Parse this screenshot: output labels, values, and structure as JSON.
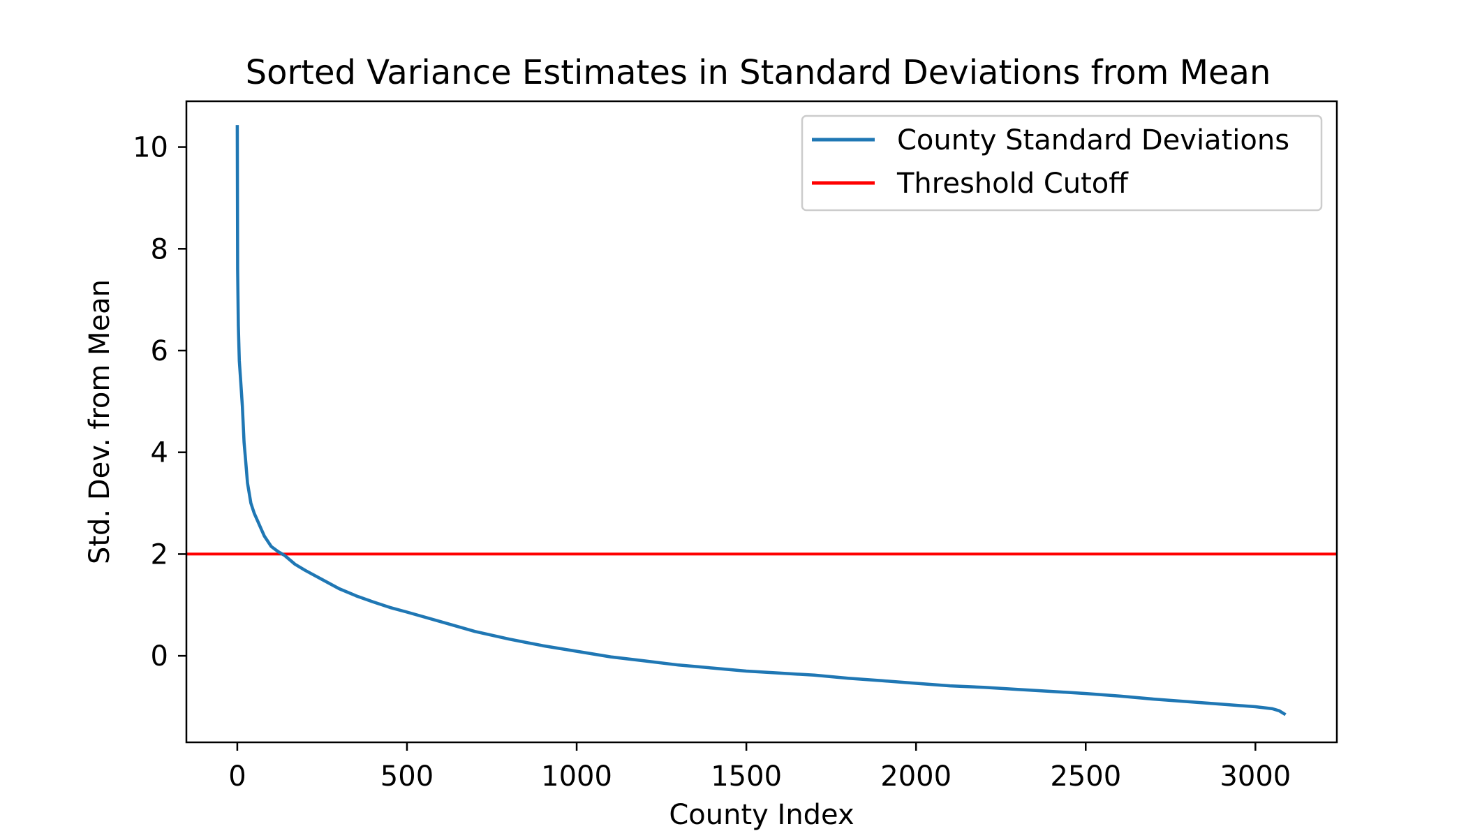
{
  "chart_data": {
    "type": "line",
    "title": "Sorted Variance Estimates in Standard Deviations from Mean",
    "xlabel": "County Index",
    "ylabel": "Std. Dev. from Mean",
    "xlim": [
      -150,
      3240
    ],
    "ylim": [
      -1.7,
      10.9
    ],
    "x_ticks": [
      0,
      500,
      1000,
      1500,
      2000,
      2500,
      3000
    ],
    "y_ticks": [
      0,
      2,
      4,
      6,
      8,
      10
    ],
    "grid": false,
    "legend_position": "top-right",
    "series": [
      {
        "name": "County Standard Deviations",
        "color": "#1f77b4",
        "x": [
          0,
          1,
          3,
          6,
          10,
          15,
          20,
          25,
          30,
          40,
          50,
          60,
          70,
          80,
          100,
          120,
          140,
          170,
          200,
          250,
          300,
          350,
          400,
          450,
          500,
          600,
          700,
          800,
          900,
          1000,
          1100,
          1200,
          1300,
          1400,
          1500,
          1600,
          1700,
          1800,
          1900,
          2000,
          2100,
          2200,
          2300,
          2400,
          2500,
          2600,
          2700,
          2800,
          2900,
          3000,
          3050,
          3070,
          3085
        ],
        "y": [
          10.4,
          7.6,
          6.5,
          5.8,
          5.4,
          4.9,
          4.2,
          3.8,
          3.4,
          3.0,
          2.8,
          2.65,
          2.5,
          2.35,
          2.15,
          2.05,
          1.97,
          1.8,
          1.68,
          1.5,
          1.32,
          1.18,
          1.06,
          0.95,
          0.86,
          0.67,
          0.48,
          0.33,
          0.2,
          0.09,
          -0.02,
          -0.1,
          -0.18,
          -0.24,
          -0.3,
          -0.34,
          -0.38,
          -0.44,
          -0.49,
          -0.54,
          -0.59,
          -0.62,
          -0.66,
          -0.7,
          -0.74,
          -0.79,
          -0.85,
          -0.9,
          -0.95,
          -1.0,
          -1.04,
          -1.08,
          -1.14
        ]
      },
      {
        "name": "Threshold Cutoff",
        "color": "#ff0000",
        "y_constant": 2
      }
    ]
  }
}
